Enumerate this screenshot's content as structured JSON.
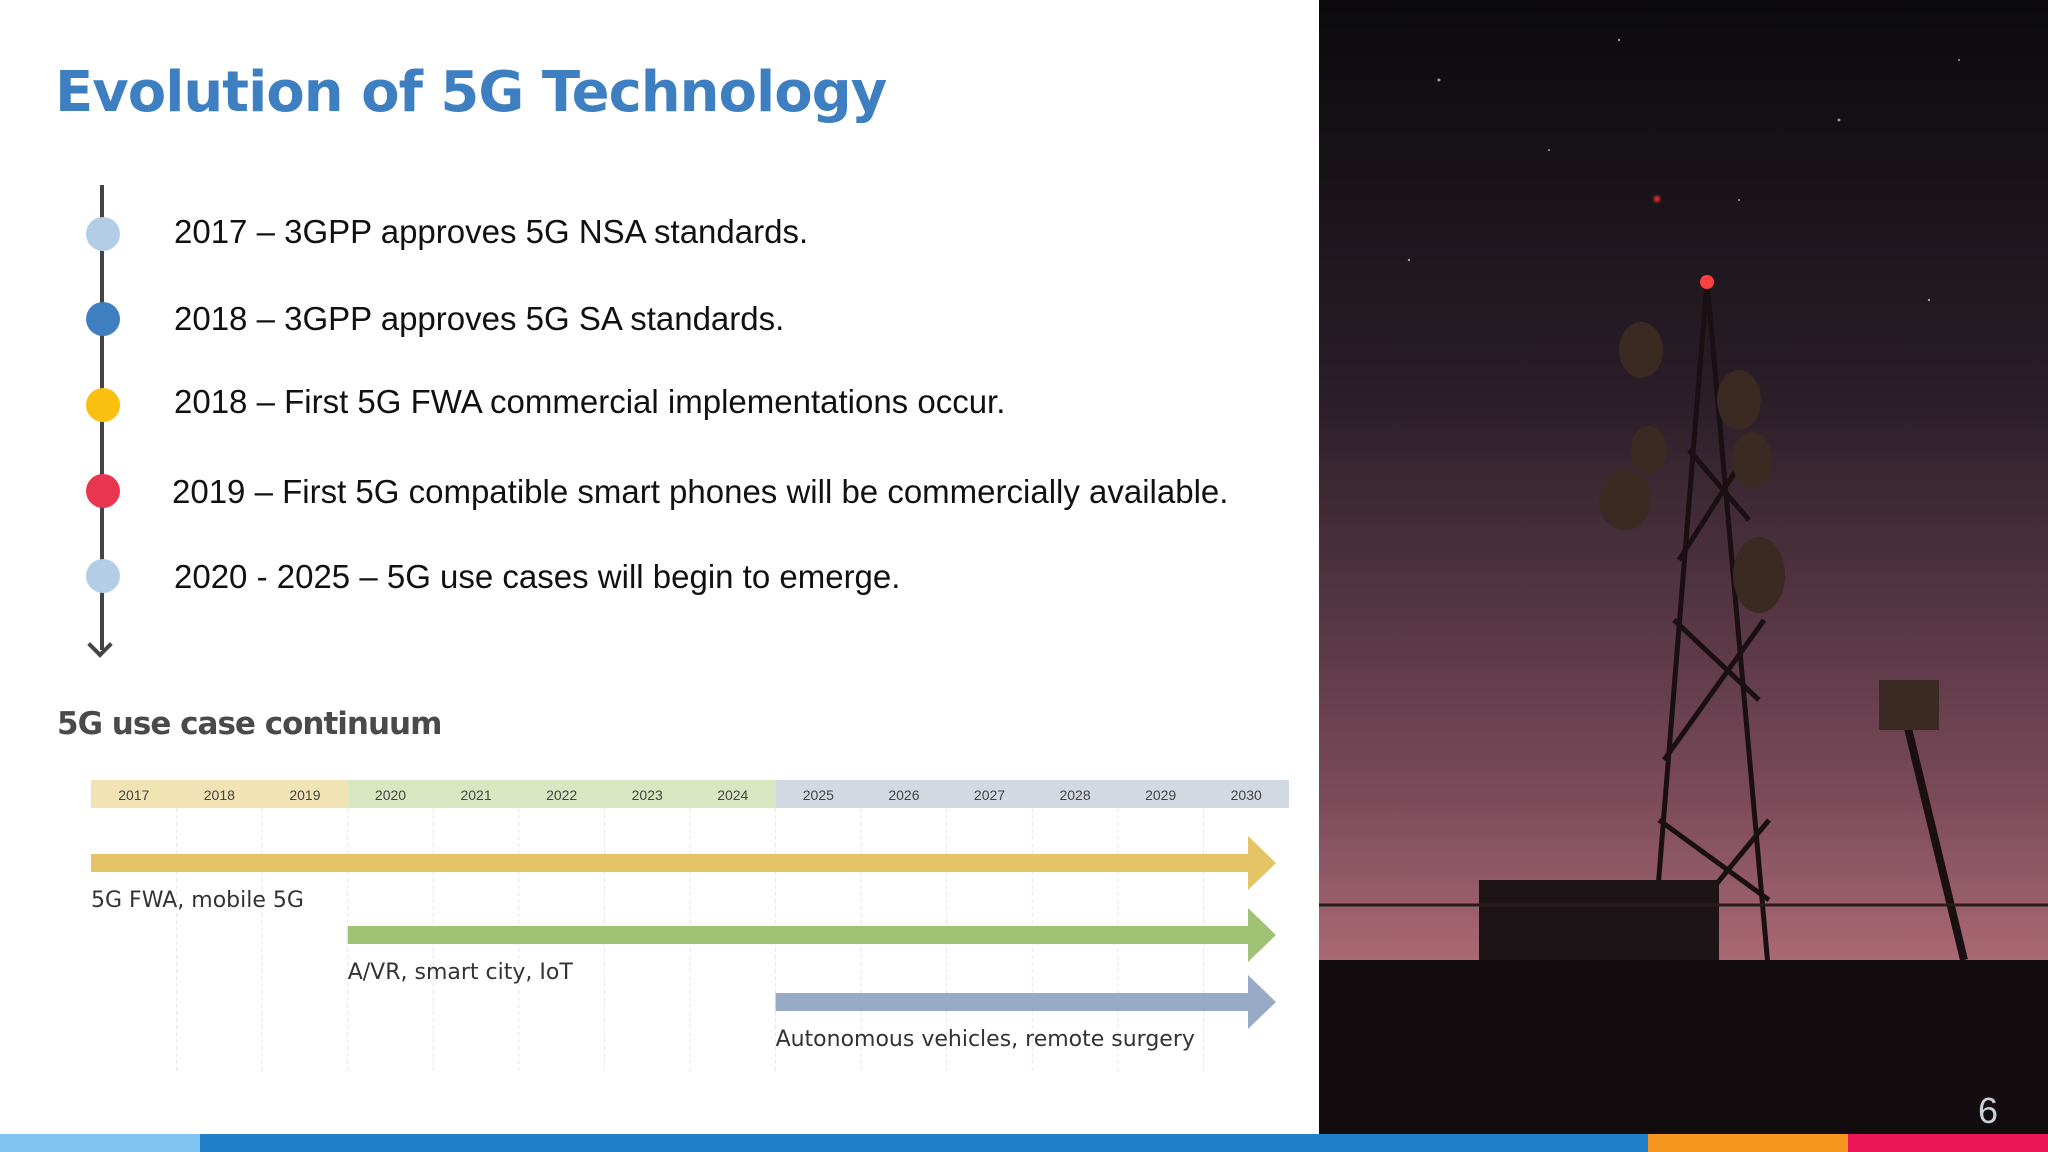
{
  "title": "Evolution of 5G Technology",
  "timeline": [
    {
      "text": "2017 – 3GPP approves 5G NSA standards.",
      "color": "#b4cde6"
    },
    {
      "text": "2018 – 3GPP approves 5G SA standards.",
      "color": "#3d7fc1"
    },
    {
      "text": "2018 – First 5G FWA commercial implementations occur.",
      "color": "#fbbf0f"
    },
    {
      "text": "2019 – First 5G compatible smart phones will be commercially available.",
      "color": "#ea3550"
    },
    {
      "text": "2020 - 2025 – 5G use cases will begin to emerge.",
      "color": "#b4cde6"
    }
  ],
  "chart_data": {
    "type": "timeline",
    "title": "5G use case continuum",
    "years": [
      "2017",
      "2018",
      "2019",
      "2020",
      "2021",
      "2022",
      "2023",
      "2024",
      "2025",
      "2026",
      "2027",
      "2028",
      "2029",
      "2030"
    ],
    "eras": [
      {
        "from": "2017",
        "to": "2019",
        "color": "#f1e3b4"
      },
      {
        "from": "2020",
        "to": "2024",
        "color": "#d8e6c2"
      },
      {
        "from": "2025",
        "to": "2030",
        "color": "#d3d9e2"
      }
    ],
    "series": [
      {
        "name": "5G FWA, mobile 5G",
        "start": "2017",
        "end": "2030",
        "color": "#e5c467"
      },
      {
        "name": "A/VR, smart city, IoT",
        "start": "2020",
        "end": "2030",
        "color": "#9fc275"
      },
      {
        "name": "Autonomous vehicles, remote surgery",
        "start": "2025",
        "end": "2030",
        "color": "#98aac6"
      }
    ]
  },
  "page_number": "6",
  "footer_colors": [
    "#7fc4f0",
    "#1f7fc8",
    "#f7961e",
    "#ec1556"
  ]
}
